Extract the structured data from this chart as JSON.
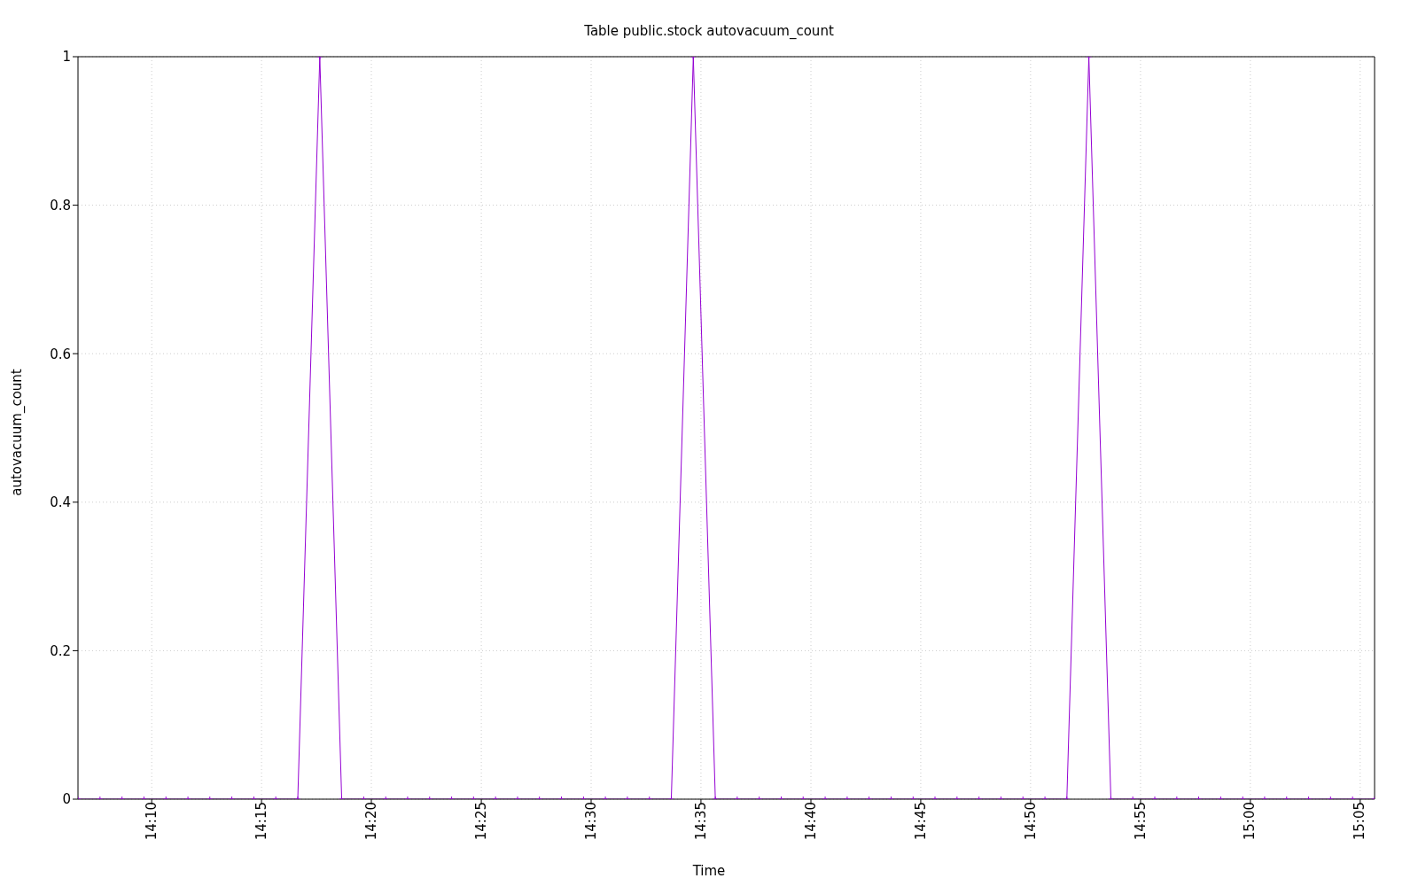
{
  "chart_data": {
    "type": "line",
    "title": "Table public.stock autovacuum_count",
    "xlabel": "Time",
    "ylabel": "autovacuum_count",
    "x": [
      14.1108,
      14.1275,
      14.1442,
      14.1608,
      14.1775,
      14.1942,
      14.2108,
      14.2275,
      14.2442,
      14.2608,
      14.2775,
      14.2942,
      14.3108,
      14.3275,
      14.3442,
      14.3608,
      14.3775,
      14.3942,
      14.4108,
      14.4275,
      14.4442,
      14.4608,
      14.4775,
      14.4942,
      14.5108,
      14.5275,
      14.5442,
      14.5608,
      14.5775,
      14.5942,
      14.6108,
      14.6275,
      14.6442,
      14.6608,
      14.6775,
      14.6942,
      14.7108,
      14.7275,
      14.7442,
      14.7608,
      14.7775,
      14.7942,
      14.8108,
      14.8275,
      14.8442,
      14.8608,
      14.8775,
      14.8942,
      14.9108,
      14.9275,
      14.9442,
      14.9608,
      14.9775,
      14.9942,
      15.0108,
      15.0275,
      15.0442,
      15.0608,
      15.0775,
      15.0942
    ],
    "series": [
      {
        "color": "#9400d3",
        "values": [
          0,
          0,
          0,
          0,
          0,
          0,
          0,
          0,
          0,
          0,
          0,
          1,
          0,
          0,
          0,
          0,
          0,
          0,
          0,
          0,
          0,
          0,
          0,
          0,
          0,
          0,
          0,
          0,
          1,
          0,
          0,
          0,
          0,
          0,
          0,
          0,
          0,
          0,
          0,
          0,
          0,
          0,
          0,
          0,
          0,
          0,
          1,
          0,
          0,
          0,
          0,
          0,
          0,
          0,
          0,
          0,
          0,
          0,
          0,
          0
        ]
      }
    ],
    "xlim": [
      14.1108,
      15.0942
    ],
    "xticks": [
      {
        "value": 14.1667,
        "label": "14:10"
      },
      {
        "value": 14.25,
        "label": "14:15"
      },
      {
        "value": 14.3333,
        "label": "14:20"
      },
      {
        "value": 14.4167,
        "label": "14:25"
      },
      {
        "value": 14.5,
        "label": "14:30"
      },
      {
        "value": 14.5833,
        "label": "14:35"
      },
      {
        "value": 14.6667,
        "label": "14:40"
      },
      {
        "value": 14.75,
        "label": "14:45"
      },
      {
        "value": 14.8333,
        "label": "14:50"
      },
      {
        "value": 14.9167,
        "label": "14:55"
      },
      {
        "value": 15,
        "label": "15:00"
      },
      {
        "value": 15.0833,
        "label": "15:05"
      }
    ],
    "ylim": [
      0,
      1
    ],
    "yticks": [
      0,
      {
        "value": 0.2,
        "label": "0.2"
      },
      {
        "value": 0.4,
        "label": "0.4"
      },
      {
        "value": 0.6,
        "label": "0.6"
      },
      {
        "value": 0.8,
        "label": "0.8"
      },
      1
    ],
    "grid": true,
    "legend": false,
    "marker": "cross",
    "line_style": "solid"
  }
}
